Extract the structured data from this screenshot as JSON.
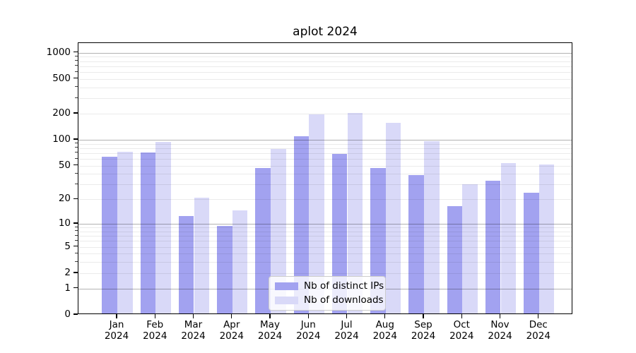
{
  "chart_data": {
    "type": "bar",
    "title": "aplot 2024",
    "x_months": [
      "Jan",
      "Feb",
      "Mar",
      "Apr",
      "May",
      "Jun",
      "Jul",
      "Aug",
      "Sep",
      "Oct",
      "Nov",
      "Dec"
    ],
    "x_year": "2024",
    "series": [
      {
        "name": "Nb of distinct IPs",
        "key": "distinct-ips",
        "color": "#a2a2f0",
        "values": [
          61,
          68,
          12,
          9,
          45,
          106,
          66,
          45,
          37,
          16,
          32,
          23
        ]
      },
      {
        "name": "Nb of downloads",
        "key": "downloads",
        "color": "#d9d9f8",
        "values": [
          70,
          91,
          20,
          14,
          75,
          188,
          195,
          150,
          93,
          29,
          52,
          50
        ]
      }
    ],
    "y_ticks": [
      0,
      1,
      2,
      5,
      10,
      20,
      50,
      100,
      200,
      500,
      1000
    ],
    "y_major_gridlines": [
      1,
      10,
      100,
      1000
    ],
    "y_scale": "log10(value+1)",
    "ylim": [
      0,
      1288
    ],
    "grid": true,
    "legend_position": "lower center"
  }
}
